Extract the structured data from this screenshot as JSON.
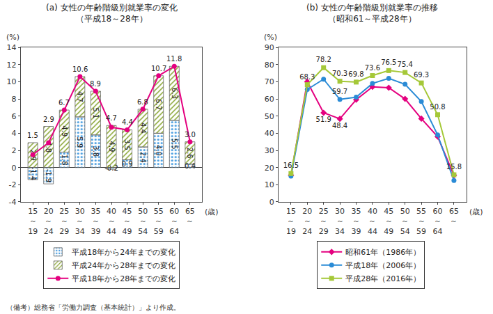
{
  "chart_data": [
    {
      "type": "bar",
      "title": "(a) 女性の年齢階級別就業率の変化",
      "subtitle": "（平成18～28年）",
      "categories": [
        "15～19",
        "20～24",
        "25～29",
        "30～34",
        "35～39",
        "40～44",
        "45～49",
        "50～54",
        "55～59",
        "60～64",
        "65～"
      ],
      "xlabel": "(歳)",
      "ylabel": "(%)",
      "ylim": [
        -4,
        14
      ],
      "yticks": [
        -4,
        -2,
        0,
        2,
        4,
        6,
        8,
        10,
        12,
        14
      ],
      "grid": false,
      "stacked": true,
      "data_labels": true,
      "legend": "bottom",
      "series": [
        {
          "name": "平成18年から24年までの変化",
          "type": "bar",
          "color": "#cfe8f8",
          "values": [
            -1.4,
            -1.9,
            1.8,
            5.9,
            3.8,
            -0.2,
            0.9,
            2.4,
            4.0,
            5.5,
            0.4
          ],
          "value_labels": [
            "-1.4",
            "-1.9",
            "1.8",
            "5.9",
            "3.8",
            "-0.2",
            "0.9",
            "2.4",
            "4.0",
            "5.5",
            "0.4"
          ]
        },
        {
          "name": "平成24年から28年までの変化",
          "type": "bar",
          "color": "#e3ecb0",
          "values": [
            2.9,
            4.8,
            4.9,
            4.7,
            5.1,
            4.9,
            3.5,
            4.4,
            6.7,
            6.3,
            2.6
          ],
          "value_labels": [
            "2.9",
            "4.8",
            "4.9",
            "4.7",
            "5.1",
            "4.9",
            "3.5",
            "4.4",
            "6.7",
            "6.3",
            "2.6"
          ]
        },
        {
          "name": "平成18年から28年までの変化",
          "type": "line",
          "color": "#e4007f",
          "marker": "circle",
          "values": [
            1.5,
            2.9,
            6.7,
            10.6,
            8.9,
            4.7,
            4.4,
            6.8,
            10.7,
            11.8,
            3.0
          ],
          "value_labels": [
            "1.5",
            "2.9",
            "6.7",
            "10.6",
            "8.9",
            "4.7",
            "4.4",
            "6.8",
            "10.7",
            "11.8",
            "3.0"
          ]
        }
      ]
    },
    {
      "type": "line",
      "title": "(b) 女性の年齢階級別就業率の推移",
      "subtitle": "（昭和61～平成28年）",
      "categories": [
        "15～19",
        "20～24",
        "25～29",
        "30～34",
        "35～39",
        "40～44",
        "45～49",
        "50～54",
        "55～59",
        "60～64",
        "65～"
      ],
      "xlabel": "(歳)",
      "ylabel": "(%)",
      "ylim": [
        0,
        90
      ],
      "yticks": [
        0,
        10,
        20,
        30,
        40,
        50,
        60,
        70,
        80,
        90
      ],
      "grid": false,
      "data_labels": true,
      "legend": "bottom",
      "series": [
        {
          "name": "昭和61年（1986年）",
          "color": "#e4007f",
          "marker": "diamond",
          "values": [
            15.5,
            70.0,
            51.9,
            48.4,
            59.5,
            67.0,
            66.5,
            60.0,
            48.5,
            38.0,
            15.5
          ],
          "value_labels": [
            null,
            null,
            "51.9",
            "48.4",
            null,
            null,
            null,
            null,
            null,
            null,
            null
          ]
        },
        {
          "name": "平成18年（2006年）",
          "color": "#2a8bd6",
          "marker": "circle",
          "values": [
            15.0,
            65.5,
            71.5,
            59.7,
            61.0,
            69.0,
            72.0,
            68.5,
            58.5,
            39.0,
            12.5
          ],
          "value_labels": [
            null,
            null,
            null,
            "59.7",
            null,
            null,
            null,
            null,
            null,
            null,
            null
          ]
        },
        {
          "name": "平成28年（2016年）",
          "color": "#a5c838",
          "marker": "square",
          "values": [
            16.5,
            68.3,
            78.2,
            70.3,
            69.8,
            73.6,
            76.5,
            75.4,
            69.3,
            50.8,
            15.8
          ],
          "value_labels": [
            "16.5",
            "68.3",
            "78.2",
            "70.3",
            "69.8",
            "73.6",
            "76.5",
            "75.4",
            "69.3",
            "50.8",
            "15.8"
          ]
        }
      ]
    }
  ],
  "note": "（備考）総務省「労働力調査（基本統計）」より作成。"
}
